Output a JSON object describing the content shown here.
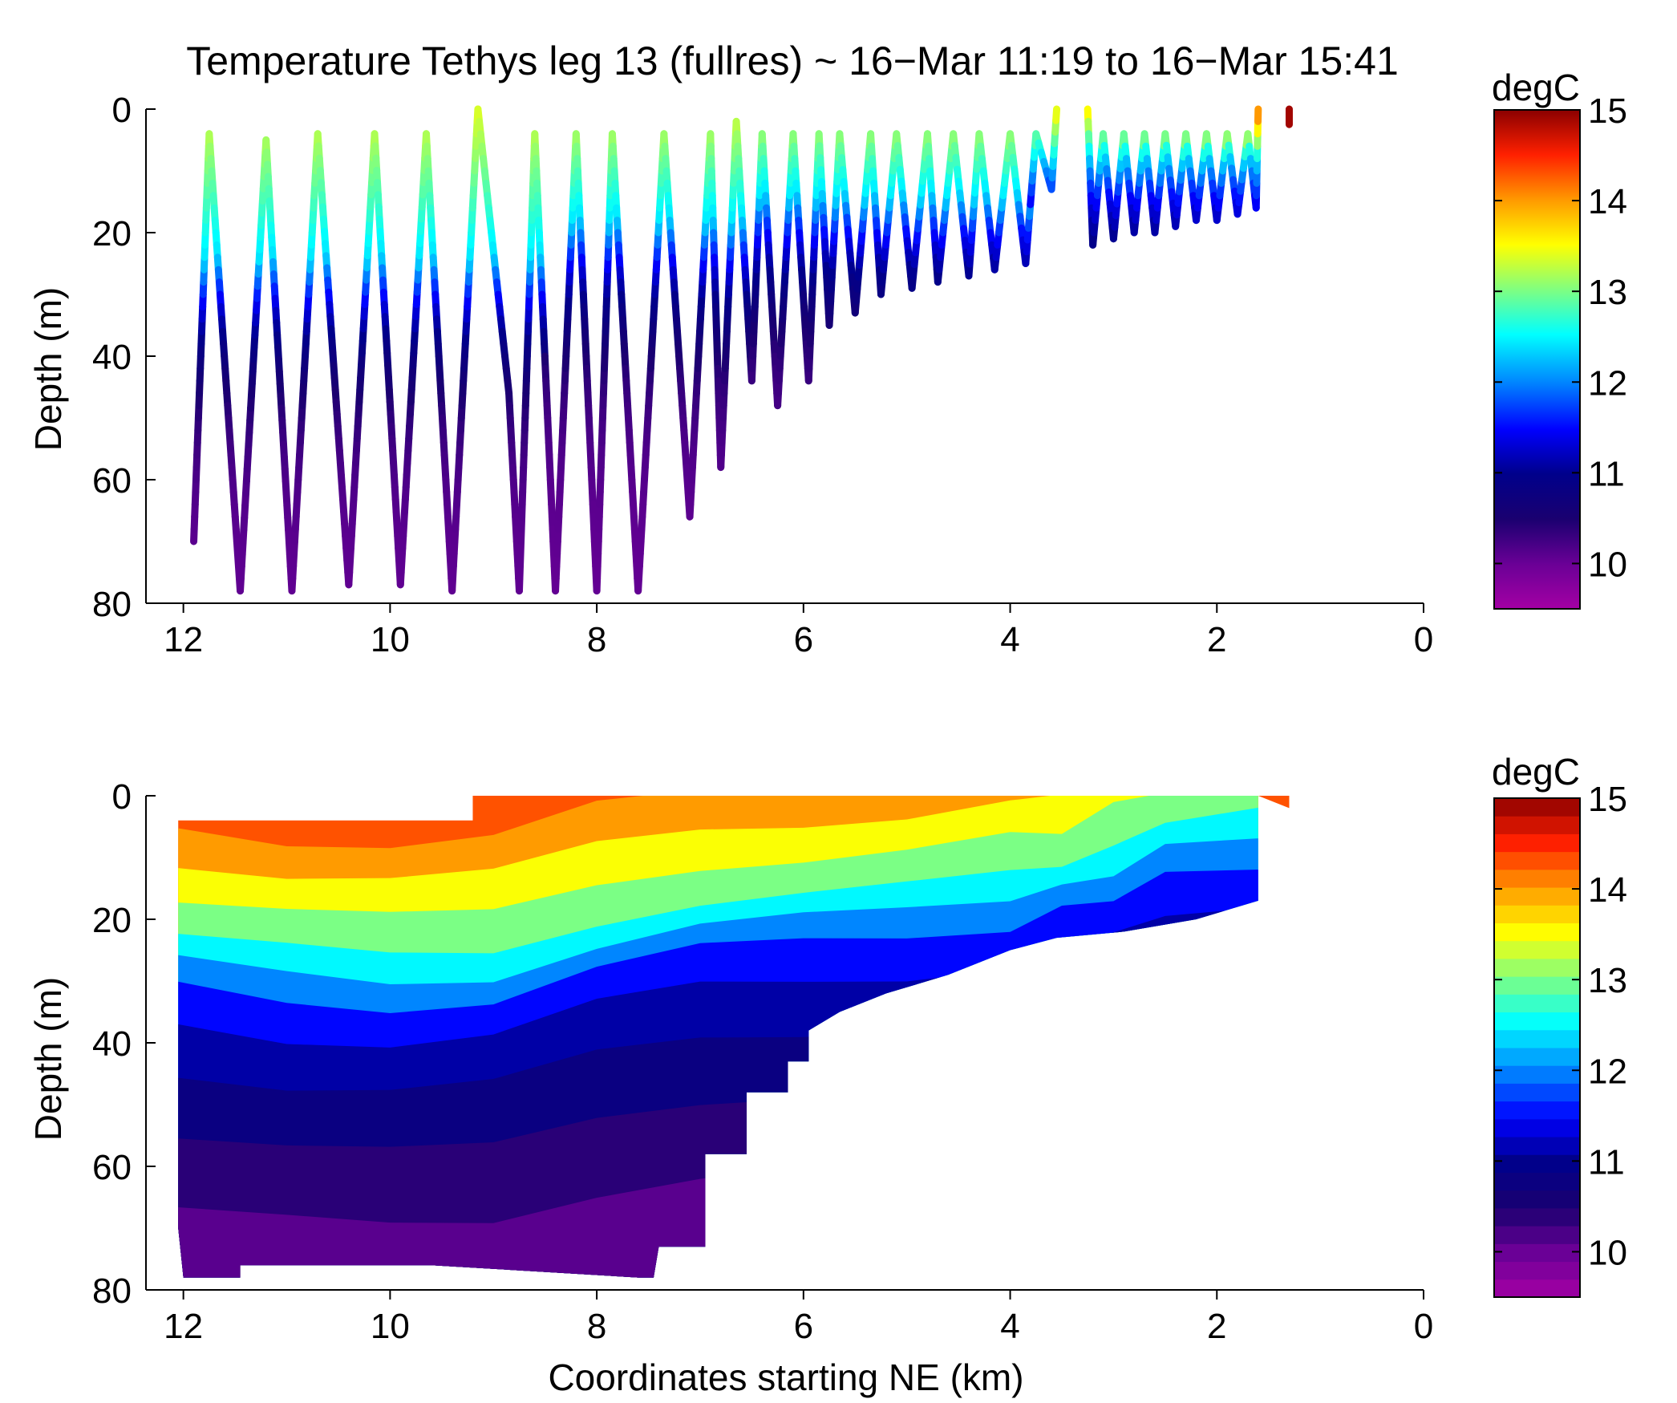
{
  "colors": {
    "jet": [
      "#800080",
      "#00008b",
      "#0000ff",
      "#00aaff",
      "#00ffff",
      "#adff2f",
      "#ffff00",
      "#ffa500",
      "#ff0000",
      "#8b0000"
    ],
    "axis": "#000000",
    "background": "#ffffff"
  },
  "chart_data": [
    {
      "type": "scatter",
      "title": "Temperature Tethys leg 13 (fullres) ~ 16−Mar 11:19 to 16−Mar 15:41",
      "xlabel": "",
      "ylabel": "Depth (m)",
      "xlim": [
        12.3,
        0
      ],
      "ylim": [
        0,
        80
      ],
      "x_ticks": [
        "12",
        "10",
        "8",
        "6",
        "4",
        "2",
        "0"
      ],
      "y_ticks": [
        "0",
        "20",
        "40",
        "60",
        "80"
      ],
      "colorbar": {
        "label": "degC",
        "range": [
          9.5,
          15
        ],
        "ticks": [
          "10",
          "11",
          "12",
          "13",
          "14",
          "15"
        ]
      },
      "vertices": [
        [
          11.9,
          70
        ],
        [
          11.75,
          4
        ],
        [
          11.45,
          78
        ],
        [
          11.2,
          5
        ],
        [
          10.95,
          78
        ],
        [
          10.7,
          4
        ],
        [
          10.4,
          77
        ],
        [
          10.15,
          4
        ],
        [
          9.9,
          77
        ],
        [
          9.65,
          4
        ],
        [
          9.4,
          78
        ],
        [
          9.15,
          0
        ],
        [
          8.85,
          46
        ],
        [
          8.75,
          78
        ],
        [
          8.6,
          4
        ],
        [
          8.4,
          78
        ],
        [
          8.2,
          4
        ],
        [
          8.0,
          78
        ],
        [
          7.85,
          4
        ],
        [
          7.6,
          78
        ],
        [
          7.35,
          4
        ],
        [
          7.1,
          66
        ],
        [
          6.9,
          4
        ],
        [
          6.8,
          58
        ],
        [
          6.65,
          2
        ],
        [
          6.5,
          44
        ],
        [
          6.4,
          4
        ],
        [
          6.25,
          48
        ],
        [
          6.1,
          4
        ],
        [
          5.95,
          44
        ],
        [
          5.85,
          4
        ],
        [
          5.75,
          35
        ],
        [
          5.65,
          4
        ],
        [
          5.5,
          33
        ],
        [
          5.35,
          4
        ],
        [
          5.25,
          30
        ],
        [
          5.1,
          4
        ],
        [
          4.95,
          29
        ],
        [
          4.8,
          4
        ],
        [
          4.7,
          28
        ],
        [
          4.55,
          4
        ],
        [
          4.4,
          27
        ],
        [
          4.3,
          4
        ],
        [
          4.15,
          26
        ],
        [
          4.0,
          4
        ],
        [
          3.85,
          25
        ],
        [
          3.75,
          4
        ],
        [
          3.6,
          13
        ],
        [
          3.55,
          0
        ]
      ],
      "vertices_b": [
        [
          3.25,
          0
        ],
        [
          3.2,
          22
        ],
        [
          3.1,
          4
        ],
        [
          3.0,
          21
        ],
        [
          2.9,
          4
        ],
        [
          2.8,
          20
        ],
        [
          2.7,
          4
        ],
        [
          2.6,
          20
        ],
        [
          2.5,
          4
        ],
        [
          2.4,
          19
        ],
        [
          2.3,
          4
        ],
        [
          2.2,
          18
        ],
        [
          2.1,
          4
        ],
        [
          2.0,
          18
        ],
        [
          1.9,
          4
        ],
        [
          1.8,
          17
        ],
        [
          1.7,
          4
        ],
        [
          1.62,
          16
        ],
        [
          1.6,
          0
        ]
      ],
      "isolated": [
        [
          1.3,
          1
        ]
      ]
    },
    {
      "type": "heatmap",
      "title": "",
      "xlabel": "Coordinates starting NE (km)",
      "ylabel": "Depth (m)",
      "xlim": [
        12.3,
        0
      ],
      "ylim": [
        0,
        80
      ],
      "x_ticks": [
        "12",
        "10",
        "8",
        "6",
        "4",
        "2",
        "0"
      ],
      "y_ticks": [
        "0",
        "20",
        "40",
        "60",
        "80"
      ],
      "colorbar": {
        "label": "degC",
        "range": [
          9.5,
          15
        ],
        "ticks": [
          "10",
          "11",
          "12",
          "13",
          "14",
          "15"
        ]
      },
      "bottom_profile": [
        [
          12.0,
          78
        ],
        [
          11.45,
          78
        ],
        [
          11.45,
          76
        ],
        [
          9.6,
          76
        ],
        [
          7.6,
          78
        ],
        [
          7.45,
          78
        ],
        [
          7.4,
          73
        ],
        [
          6.95,
          73
        ],
        [
          6.95,
          58
        ],
        [
          6.55,
          58
        ],
        [
          6.55,
          48
        ],
        [
          6.15,
          48
        ],
        [
          6.15,
          43
        ],
        [
          5.95,
          43
        ],
        [
          5.95,
          38
        ],
        [
          5.65,
          35
        ],
        [
          5.2,
          32
        ],
        [
          4.6,
          29
        ],
        [
          4.0,
          25
        ],
        [
          3.55,
          23
        ],
        [
          2.9,
          22
        ],
        [
          2.2,
          20
        ],
        [
          1.6,
          17
        ],
        [
          1.6,
          0
        ]
      ],
      "thermocline": [
        [
          11.9,
          22
        ],
        [
          11.0,
          25
        ],
        [
          10.0,
          26
        ],
        [
          9.0,
          25
        ],
        [
          8.0,
          20
        ],
        [
          7.0,
          17
        ],
        [
          6.0,
          16
        ],
        [
          5.0,
          15
        ],
        [
          4.0,
          13
        ],
        [
          3.5,
          11
        ],
        [
          3.0,
          8
        ],
        [
          2.5,
          5
        ],
        [
          1.6,
          3
        ]
      ],
      "levels": [
        {
          "depth_below_tc": -18,
          "temp": 14.0
        },
        {
          "depth_below_tc": -12,
          "temp": 13.5
        },
        {
          "depth_below_tc": -6,
          "temp": 13.0
        },
        {
          "depth_below_tc": 0,
          "temp": 12.5
        },
        {
          "depth_below_tc": 4,
          "temp": 12.0
        },
        {
          "depth_below_tc": 8,
          "temp": 11.5
        },
        {
          "depth_below_tc": 14,
          "temp": 11.1
        },
        {
          "depth_below_tc": 22,
          "temp": 10.8
        },
        {
          "depth_below_tc": 32,
          "temp": 10.4
        },
        {
          "depth_below_tc": 44,
          "temp": 10.1
        }
      ]
    }
  ]
}
